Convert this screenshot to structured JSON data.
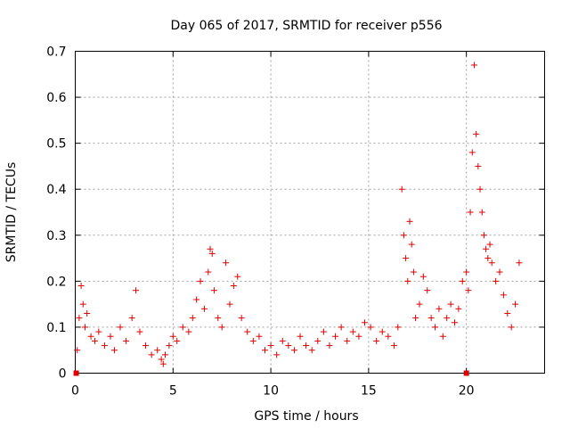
{
  "chart_data": {
    "type": "scatter",
    "title": "Day 065 of 2017, SRMTID for receiver p556",
    "xlabel": "GPS time / hours",
    "ylabel": "SRMTID / TECUs",
    "xlim": [
      0,
      24
    ],
    "ylim": [
      0,
      0.7
    ],
    "x_ticks": [
      0,
      5,
      10,
      15,
      20
    ],
    "y_ticks": [
      0,
      0.1,
      0.2,
      0.3,
      0.4,
      0.5,
      0.6,
      0.7
    ],
    "x_tick_labels": [
      "0",
      "5",
      "10",
      "15",
      "20"
    ],
    "y_tick_labels": [
      "0",
      "0.1",
      "0.2",
      "0.3",
      "0.4",
      "0.5",
      "0.6",
      "0.7"
    ],
    "grid": true,
    "marker": "+",
    "color": "#e00000",
    "zero_points": [
      {
        "x": 0.05,
        "y": 0
      },
      {
        "x": 20.0,
        "y": 0
      }
    ],
    "series": [
      {
        "name": "SRMTID",
        "x": [
          0.1,
          0.2,
          0.3,
          0.4,
          0.5,
          0.6,
          0.8,
          1.0,
          1.2,
          1.5,
          1.8,
          2.0,
          2.3,
          2.6,
          2.9,
          3.1,
          3.3,
          3.6,
          3.9,
          4.2,
          4.4,
          4.5,
          4.6,
          4.8,
          5.0,
          5.2,
          5.5,
          5.8,
          6.0,
          6.2,
          6.4,
          6.6,
          6.8,
          6.9,
          7.0,
          7.1,
          7.3,
          7.5,
          7.7,
          7.9,
          8.1,
          8.3,
          8.5,
          8.8,
          9.1,
          9.4,
          9.7,
          10.0,
          10.3,
          10.6,
          10.9,
          11.2,
          11.5,
          11.8,
          12.1,
          12.4,
          12.7,
          13.0,
          13.3,
          13.6,
          13.9,
          14.2,
          14.5,
          14.8,
          15.1,
          15.4,
          15.7,
          16.0,
          16.3,
          16.5,
          16.7,
          16.8,
          16.9,
          17.0,
          17.1,
          17.2,
          17.3,
          17.4,
          17.6,
          17.8,
          18.0,
          18.2,
          18.4,
          18.6,
          18.8,
          19.0,
          19.2,
          19.4,
          19.6,
          19.8,
          20.0,
          20.1,
          20.2,
          20.3,
          20.4,
          20.5,
          20.6,
          20.7,
          20.8,
          20.9,
          21.0,
          21.1,
          21.2,
          21.3,
          21.5,
          21.7,
          21.9,
          22.1,
          22.3,
          22.5,
          22.7
        ],
        "y": [
          0.05,
          0.12,
          0.19,
          0.15,
          0.1,
          0.13,
          0.08,
          0.07,
          0.09,
          0.06,
          0.08,
          0.05,
          0.1,
          0.07,
          0.12,
          0.18,
          0.09,
          0.06,
          0.04,
          0.05,
          0.03,
          0.02,
          0.04,
          0.06,
          0.08,
          0.07,
          0.1,
          0.09,
          0.12,
          0.16,
          0.2,
          0.14,
          0.22,
          0.27,
          0.26,
          0.18,
          0.12,
          0.1,
          0.24,
          0.15,
          0.19,
          0.21,
          0.12,
          0.09,
          0.07,
          0.08,
          0.05,
          0.06,
          0.04,
          0.07,
          0.06,
          0.05,
          0.08,
          0.06,
          0.05,
          0.07,
          0.09,
          0.06,
          0.08,
          0.1,
          0.07,
          0.09,
          0.08,
          0.11,
          0.1,
          0.07,
          0.09,
          0.08,
          0.06,
          0.1,
          0.4,
          0.3,
          0.25,
          0.2,
          0.33,
          0.28,
          0.22,
          0.12,
          0.15,
          0.21,
          0.18,
          0.12,
          0.1,
          0.14,
          0.08,
          0.12,
          0.15,
          0.11,
          0.14,
          0.2,
          0.22,
          0.18,
          0.35,
          0.48,
          0.67,
          0.52,
          0.45,
          0.4,
          0.35,
          0.3,
          0.27,
          0.25,
          0.28,
          0.24,
          0.2,
          0.22,
          0.17,
          0.13,
          0.1,
          0.15,
          0.24
        ]
      }
    ]
  }
}
